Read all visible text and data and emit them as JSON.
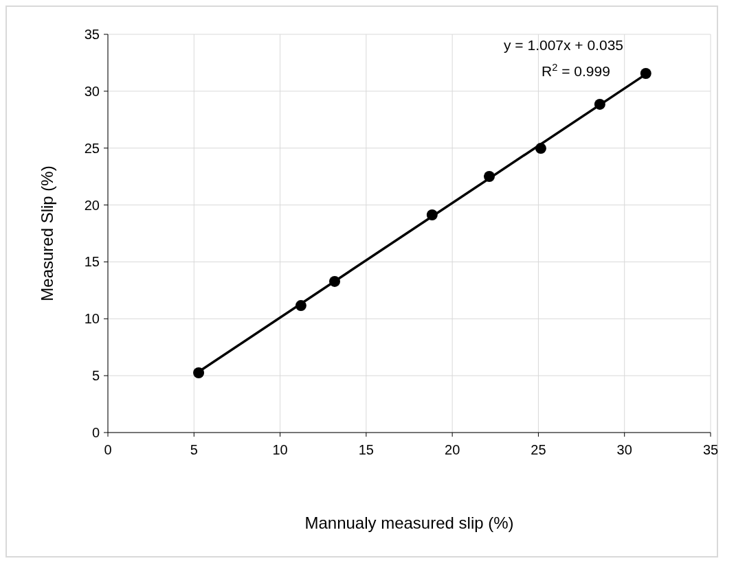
{
  "chart_data": {
    "type": "scatter",
    "xlabel": "Mannualy measured slip (%)",
    "ylabel": "Measured Slip (%)",
    "xlim": [
      0,
      35
    ],
    "ylim": [
      0,
      35
    ],
    "xticks": [
      0,
      5,
      10,
      15,
      20,
      25,
      30,
      35
    ],
    "yticks": [
      0,
      5,
      10,
      15,
      20,
      25,
      30,
      35
    ],
    "grid": true,
    "marker": "circle",
    "annotations": [
      "y = 1.007x + 0.035",
      "R$^{2}$ = 0.999"
    ],
    "series": [
      {
        "color": "#000000",
        "x": [
          5.27,
          11.21,
          13.17,
          18.83,
          22.15,
          25.14,
          28.57,
          31.24
        ],
        "values": [
          5.25,
          11.16,
          13.28,
          19.13,
          22.51,
          24.98,
          28.85,
          31.56
        ]
      },
      {
        "type": "line",
        "color": "#000000",
        "line_style": "solid",
        "marker": "none",
        "x": [
          5.27,
          31.24
        ],
        "values": [
          5.34,
          31.49
        ]
      }
    ]
  }
}
